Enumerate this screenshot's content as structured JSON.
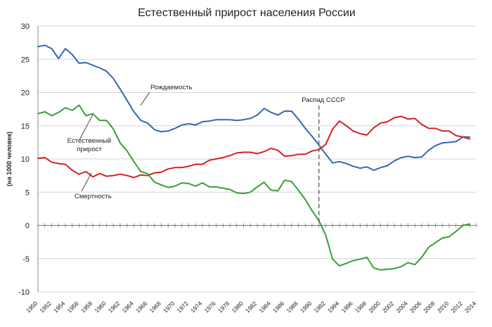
{
  "chart_data": {
    "type": "line",
    "title": "Естественный прирост населения России",
    "xlabel": "",
    "ylabel": "(на 1000 человек)",
    "xlim": [
      1950,
      2014
    ],
    "ylim": [
      -10,
      30
    ],
    "yticks": [
      -10,
      -5,
      0,
      5,
      10,
      15,
      20,
      25,
      30
    ],
    "xticks": [
      1950,
      1952,
      1954,
      1956,
      1958,
      1960,
      1962,
      1964,
      1966,
      1968,
      1970,
      1972,
      1974,
      1976,
      1978,
      1980,
      1982,
      1984,
      1986,
      1988,
      1990,
      1992,
      1994,
      1996,
      1998,
      2000,
      2002,
      2004,
      2006,
      2008,
      2010,
      2012,
      2014
    ],
    "grid": true,
    "legend": "none",
    "series": [
      {
        "name": "Рождаемость",
        "color": "#3366b3",
        "x": [
          1950,
          1951,
          1952,
          1953,
          1954,
          1955,
          1956,
          1957,
          1958,
          1959,
          1960,
          1961,
          1962,
          1963,
          1964,
          1965,
          1966,
          1967,
          1968,
          1969,
          1970,
          1971,
          1972,
          1973,
          1974,
          1975,
          1976,
          1977,
          1978,
          1979,
          1980,
          1981,
          1982,
          1983,
          1984,
          1985,
          1986,
          1987,
          1988,
          1989,
          1990,
          1991,
          1992,
          1993,
          1994,
          1995,
          1996,
          1997,
          1998,
          1999,
          2000,
          2001,
          2002,
          2003,
          2004,
          2005,
          2006,
          2007,
          2008,
          2009,
          2010,
          2011,
          2012,
          2013
        ],
        "values": [
          26.9,
          27.1,
          26.6,
          25.1,
          26.6,
          25.7,
          24.4,
          24.5,
          24.1,
          23.7,
          23.2,
          22.1,
          20.5,
          18.8,
          17.1,
          15.8,
          15.4,
          14.4,
          14.1,
          14.2,
          14.6,
          15.1,
          15.3,
          15.1,
          15.6,
          15.7,
          15.9,
          15.9,
          15.9,
          15.8,
          15.9,
          16.1,
          16.6,
          17.6,
          17.0,
          16.6,
          17.2,
          17.2,
          16.0,
          14.6,
          13.4,
          12.1,
          10.7,
          9.4,
          9.6,
          9.3,
          8.9,
          8.6,
          8.8,
          8.3,
          8.7,
          9.0,
          9.7,
          10.2,
          10.4,
          10.2,
          10.3,
          11.3,
          12.0,
          12.4,
          12.5,
          12.6,
          13.3,
          13.3
        ]
      },
      {
        "name": "Смертность",
        "color": "#d42020",
        "x": [
          1950,
          1951,
          1952,
          1953,
          1954,
          1955,
          1956,
          1957,
          1958,
          1959,
          1960,
          1961,
          1962,
          1963,
          1964,
          1965,
          1966,
          1967,
          1968,
          1969,
          1970,
          1971,
          1972,
          1973,
          1974,
          1975,
          1976,
          1977,
          1978,
          1979,
          1980,
          1981,
          1982,
          1983,
          1984,
          1985,
          1986,
          1987,
          1988,
          1989,
          1990,
          1991,
          1992,
          1993,
          1994,
          1995,
          1996,
          1997,
          1998,
          1999,
          2000,
          2001,
          2002,
          2003,
          2004,
          2005,
          2006,
          2007,
          2008,
          2009,
          2010,
          2011,
          2012,
          2013
        ],
        "values": [
          10.1,
          10.2,
          9.5,
          9.3,
          9.2,
          8.3,
          7.7,
          8.1,
          7.3,
          7.8,
          7.4,
          7.5,
          7.7,
          7.5,
          7.2,
          7.6,
          7.5,
          7.9,
          8.0,
          8.5,
          8.7,
          8.7,
          8.9,
          9.2,
          9.2,
          9.8,
          10.0,
          10.2,
          10.5,
          10.9,
          11.0,
          11.0,
          10.8,
          11.1,
          11.6,
          11.3,
          10.4,
          10.5,
          10.7,
          10.7,
          11.2,
          11.4,
          12.2,
          14.5,
          15.7,
          15.0,
          14.2,
          13.8,
          13.6,
          14.7,
          15.4,
          15.6,
          16.2,
          16.4,
          16.0,
          16.1,
          15.2,
          14.6,
          14.6,
          14.2,
          14.2,
          13.5,
          13.3,
          13.0
        ]
      },
      {
        "name": "Естественный прирост",
        "color": "#3a9e38",
        "x": [
          1950,
          1951,
          1952,
          1953,
          1954,
          1955,
          1956,
          1957,
          1958,
          1959,
          1960,
          1961,
          1962,
          1963,
          1964,
          1965,
          1966,
          1967,
          1968,
          1969,
          1970,
          1971,
          1972,
          1973,
          1974,
          1975,
          1976,
          1977,
          1978,
          1979,
          1980,
          1981,
          1982,
          1983,
          1984,
          1985,
          1986,
          1987,
          1988,
          1989,
          1990,
          1991,
          1992,
          1993,
          1994,
          1995,
          1996,
          1997,
          1998,
          1999,
          2000,
          2001,
          2002,
          2003,
          2004,
          2005,
          2006,
          2007,
          2008,
          2009,
          2010,
          2011,
          2012,
          2013
        ],
        "values": [
          16.8,
          17.1,
          16.5,
          17.0,
          17.7,
          17.3,
          18.1,
          16.5,
          16.8,
          15.8,
          15.8,
          14.5,
          12.4,
          11.2,
          9.6,
          8.1,
          7.8,
          6.5,
          6.1,
          5.7,
          5.9,
          6.4,
          6.3,
          5.9,
          6.4,
          5.8,
          5.8,
          5.6,
          5.4,
          4.9,
          4.8,
          5.0,
          5.8,
          6.5,
          5.3,
          5.2,
          6.8,
          6.6,
          5.3,
          3.9,
          2.2,
          0.7,
          -1.5,
          -5.1,
          -6.1,
          -5.7,
          -5.3,
          -5.1,
          -4.8,
          -6.4,
          -6.7,
          -6.6,
          -6.5,
          -6.2,
          -5.6,
          -5.9,
          -4.8,
          -3.3,
          -2.6,
          -1.9,
          -1.7,
          -0.9,
          0.0,
          0.2
        ]
      }
    ],
    "annotations": {
      "birth_label": "Рождаемость",
      "natural_line1": "Естественный",
      "natural_line2": "прирост",
      "death_label": "Смертность",
      "ussr_label": "Распад СССР",
      "ussr_year": 1991
    },
    "colors": {
      "grid": "#d4d4d4",
      "axis": "#888888",
      "annotation_line": "#555555",
      "zero_line": "#777777"
    }
  }
}
